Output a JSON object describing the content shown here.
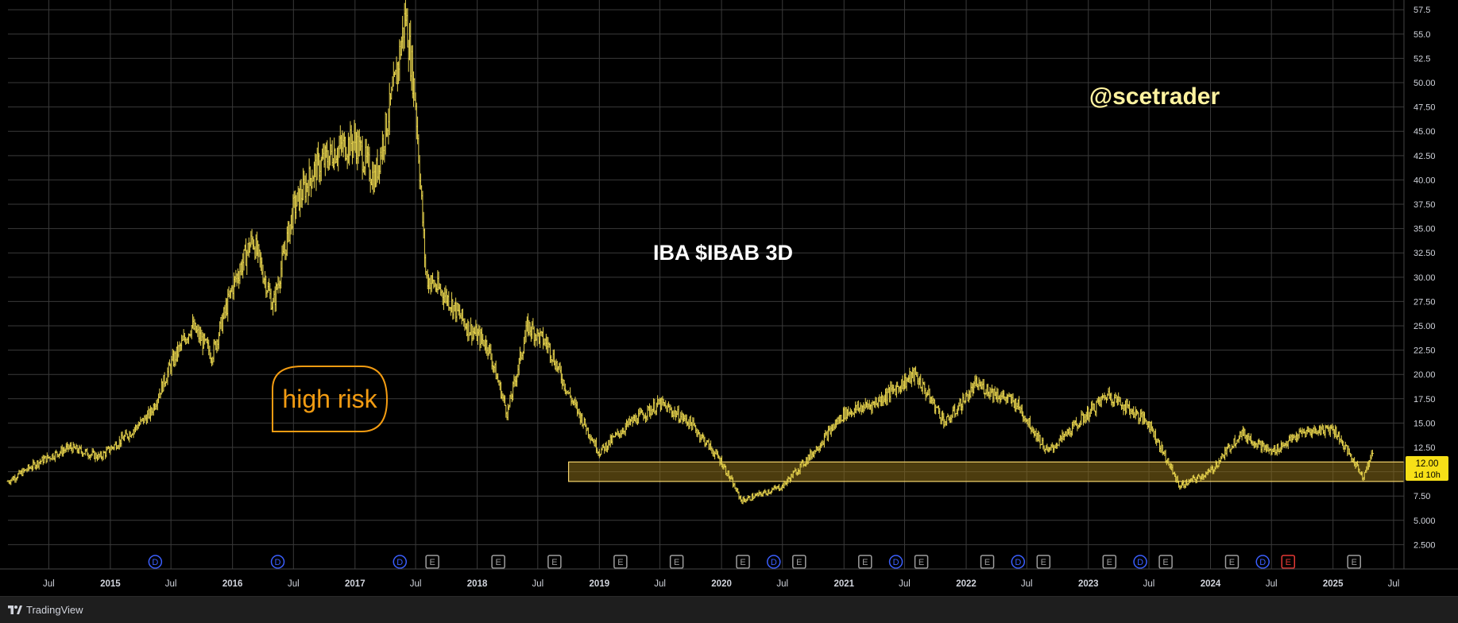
{
  "chart_data": {
    "type": "ohlc",
    "title": "IBA $IBAB 3D",
    "watermark": "@scetrader",
    "annotation": "high risk",
    "colors": {
      "background": "#000000",
      "bars": "#e8d44d",
      "grid": "#3a3a3a",
      "axis_text": "#d1d4dc",
      "watermark": "#fff3a0",
      "annotation": "#f39c12",
      "support_zone": "#8a6d1a",
      "price_label_bg": "#f7e017",
      "dividend": "#3b5fff",
      "earnings": "#9e9e9e",
      "earnings_upcoming": "#e53935"
    },
    "y_ticks": [
      "57.5",
      "55.0",
      "52.5",
      "50.00",
      "47.50",
      "45.00",
      "42.50",
      "40.00",
      "37.50",
      "35.00",
      "32.50",
      "30.00",
      "27.50",
      "25.00",
      "22.50",
      "20.00",
      "17.50",
      "15.00",
      "12.50",
      "10.00",
      "7.50",
      "5.000",
      "2.500"
    ],
    "ylim": [
      0,
      58.5
    ],
    "x_ticks": [
      "Jul",
      "2015",
      "Jul",
      "2016",
      "Jul",
      "2017",
      "Jul",
      "2018",
      "Jul",
      "2019",
      "Jul",
      "2020",
      "Jul",
      "2021",
      "Jul",
      "2022",
      "Jul",
      "2023",
      "Jul",
      "2024",
      "Jul",
      "2025",
      "Jul"
    ],
    "x_tick_bold": [
      false,
      true,
      false,
      true,
      false,
      true,
      false,
      true,
      false,
      true,
      false,
      true,
      false,
      true,
      false,
      true,
      false,
      true,
      false,
      true,
      false,
      true,
      false
    ],
    "current_price": "12.00",
    "countdown": "1d 10h",
    "support_zone": {
      "low": 9.0,
      "high": 11.0,
      "start": "2018-10",
      "end": "2025-08"
    },
    "series_path": [
      [
        "2014-03",
        9.0
      ],
      [
        "2014-06",
        11.0
      ],
      [
        "2014-09",
        12.5
      ],
      [
        "2014-12",
        11.5
      ],
      [
        "2015-03",
        14.0
      ],
      [
        "2015-05",
        16.0
      ],
      [
        "2015-07",
        21.0
      ],
      [
        "2015-09",
        25.0
      ],
      [
        "2015-11",
        22.0
      ],
      [
        "2016-01",
        29.0
      ],
      [
        "2016-03",
        34.0
      ],
      [
        "2016-05",
        27.0
      ],
      [
        "2016-07",
        37.0
      ],
      [
        "2016-09",
        41.0
      ],
      [
        "2016-11",
        43.0
      ],
      [
        "2017-01",
        44.0
      ],
      [
        "2017-03",
        40.0
      ],
      [
        "2017-05",
        50.0
      ],
      [
        "2017-06",
        57.0
      ],
      [
        "2017-07",
        48.0
      ],
      [
        "2017-08",
        30.0
      ],
      [
        "2017-10",
        28.0
      ],
      [
        "2017-12",
        25.0
      ],
      [
        "2018-02",
        23.0
      ],
      [
        "2018-04",
        16.0
      ],
      [
        "2018-06",
        25.0
      ],
      [
        "2018-08",
        23.0
      ],
      [
        "2018-10",
        18.0
      ],
      [
        "2019-01",
        12.0
      ],
      [
        "2019-04",
        15.0
      ],
      [
        "2019-07",
        17.0
      ],
      [
        "2019-10",
        15.0
      ],
      [
        "2020-01",
        11.0
      ],
      [
        "2020-03",
        7.0
      ],
      [
        "2020-07",
        8.5
      ],
      [
        "2020-10",
        12.0
      ],
      [
        "2021-01",
        16.0
      ],
      [
        "2021-04",
        17.0
      ],
      [
        "2021-08",
        20.0
      ],
      [
        "2021-11",
        15.0
      ],
      [
        "2022-02",
        19.0
      ],
      [
        "2022-06",
        17.0
      ],
      [
        "2022-09",
        12.0
      ],
      [
        "2022-12",
        15.0
      ],
      [
        "2023-03",
        18.0
      ],
      [
        "2023-07",
        15.0
      ],
      [
        "2023-10",
        8.5
      ],
      [
        "2024-01",
        10.0
      ],
      [
        "2024-04",
        14.0
      ],
      [
        "2024-07",
        12.0
      ],
      [
        "2024-10",
        14.0
      ],
      [
        "2025-01",
        14.5
      ],
      [
        "2025-04",
        9.5
      ],
      [
        "2025-05",
        12.0
      ]
    ],
    "events": [
      {
        "type": "D",
        "date": "2015-05-15",
        "label": "D"
      },
      {
        "type": "D",
        "date": "2016-05-15",
        "label": "D"
      },
      {
        "type": "D",
        "date": "2017-05-15",
        "label": "D"
      },
      {
        "type": "E",
        "date": "2017-08-20",
        "label": "E"
      },
      {
        "type": "E",
        "date": "2018-03-05",
        "label": "E"
      },
      {
        "type": "E",
        "date": "2018-08-20",
        "label": "E"
      },
      {
        "type": "E",
        "date": "2019-03-05",
        "label": "E"
      },
      {
        "type": "E",
        "date": "2019-08-20",
        "label": "E"
      },
      {
        "type": "E",
        "date": "2020-03-05",
        "label": "E"
      },
      {
        "type": "D",
        "date": "2020-06-05",
        "label": "D"
      },
      {
        "type": "E",
        "date": "2020-08-20",
        "label": "E"
      },
      {
        "type": "E",
        "date": "2021-03-05",
        "label": "E"
      },
      {
        "type": "D",
        "date": "2021-06-05",
        "label": "D"
      },
      {
        "type": "E",
        "date": "2021-08-20",
        "label": "E"
      },
      {
        "type": "E",
        "date": "2022-03-05",
        "label": "E"
      },
      {
        "type": "D",
        "date": "2022-06-05",
        "label": "D"
      },
      {
        "type": "E",
        "date": "2022-08-20",
        "label": "E"
      },
      {
        "type": "E",
        "date": "2023-03-05",
        "label": "E"
      },
      {
        "type": "D",
        "date": "2023-06-05",
        "label": "D"
      },
      {
        "type": "E",
        "date": "2023-08-20",
        "label": "E"
      },
      {
        "type": "E",
        "date": "2024-03-05",
        "label": "E"
      },
      {
        "type": "D",
        "date": "2024-06-05",
        "label": "D"
      },
      {
        "type": "E_up",
        "date": "2024-08-20",
        "label": "E"
      },
      {
        "type": "E",
        "date": "2025-03-05",
        "label": "E"
      }
    ]
  },
  "footer": {
    "brand": "TradingView"
  }
}
